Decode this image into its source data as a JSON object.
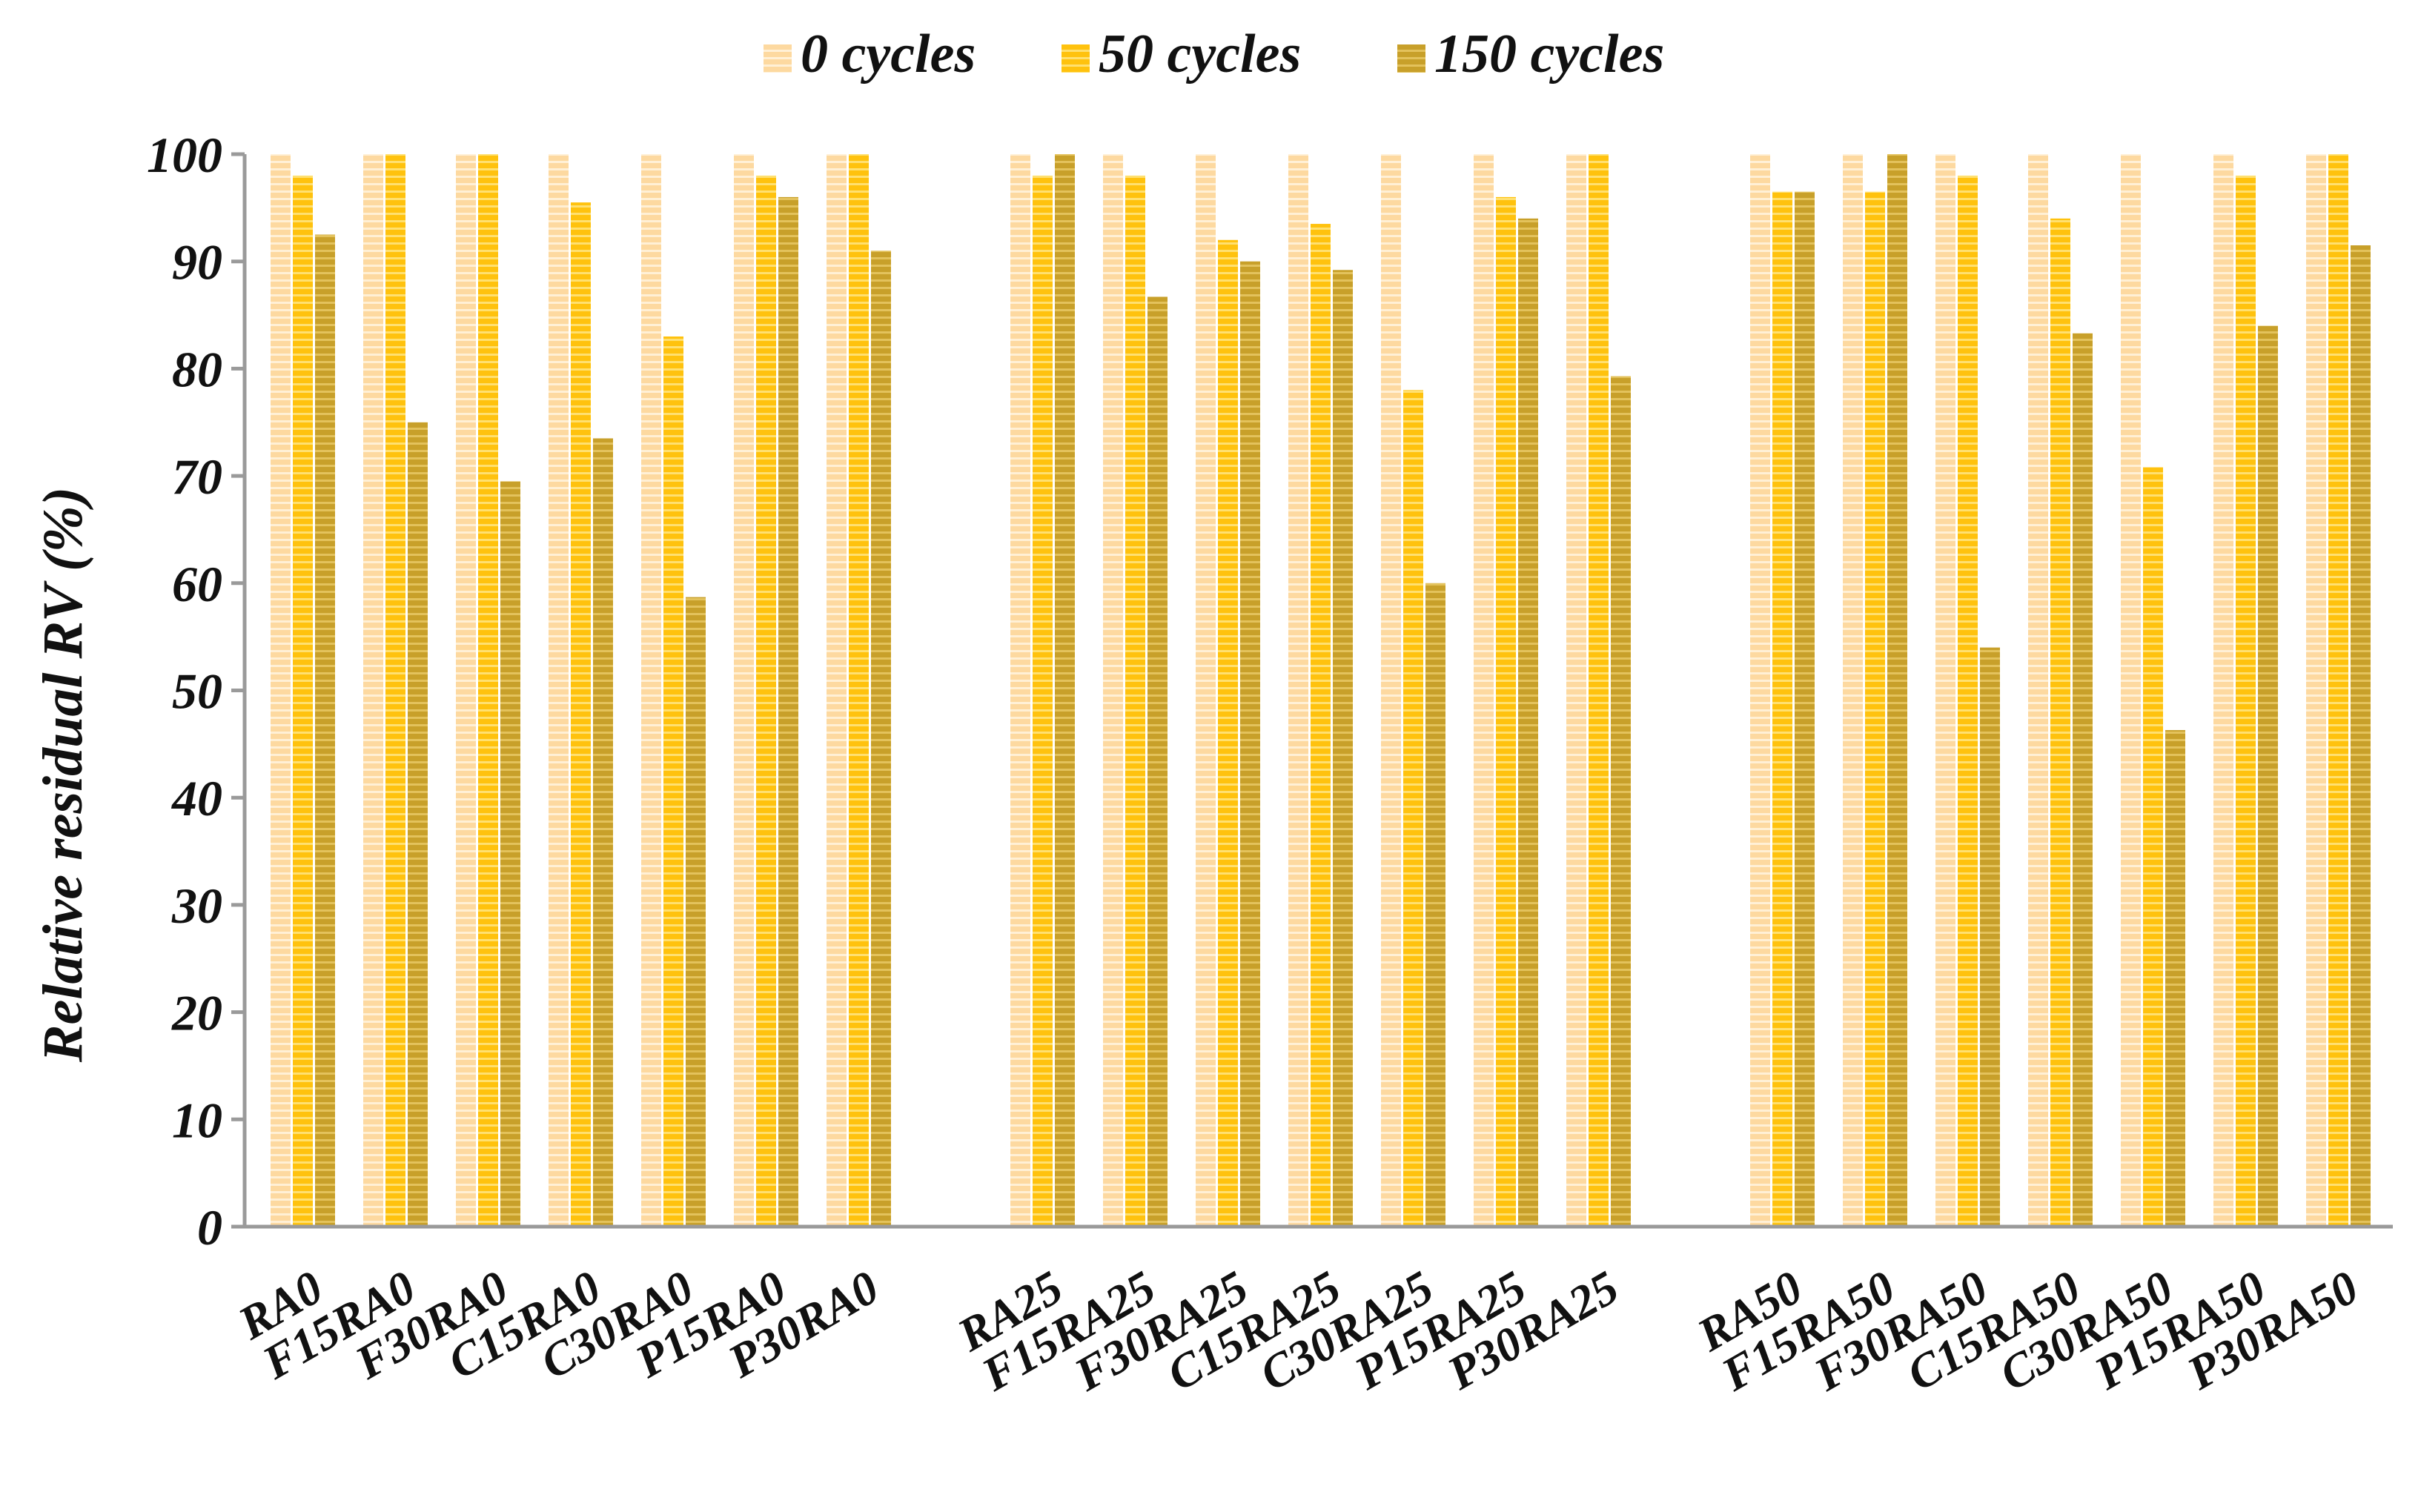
{
  "chart_data": {
    "type": "bar",
    "title": "",
    "xlabel": "",
    "ylabel": "Relative residual RV (%)",
    "ylim": [
      0,
      100
    ],
    "yticks": [
      "0",
      "10",
      "20",
      "30",
      "40",
      "50",
      "60",
      "70",
      "80",
      "90",
      "100"
    ],
    "grid": false,
    "legend_position": "top-center",
    "groups": [
      [
        "RA0",
        "F15RA0",
        "F30RA0",
        "C15RA0",
        "C30RA0",
        "P15RA0",
        "P30RA0"
      ],
      [
        "RA25",
        "F15RA25",
        "F30RA25",
        "C15RA25",
        "C30RA25",
        "P15RA25",
        "P30RA25"
      ],
      [
        "RA50",
        "F15RA50",
        "F30RA50",
        "C15RA50",
        "C30RA50",
        "P15RA50",
        "P30RA50"
      ]
    ],
    "series": [
      {
        "name": "0 cycles",
        "color": "#FDD9A0",
        "stripe": "#FFF0D6",
        "values": [
          100,
          100,
          100,
          100,
          100,
          100,
          100,
          100,
          100,
          100,
          100,
          100,
          100,
          100,
          100,
          100,
          100,
          100,
          100,
          100,
          100
        ]
      },
      {
        "name": "50 cycles",
        "color": "#FFC20E",
        "stripe": "#FFE070",
        "values": [
          98,
          100,
          100,
          95.5,
          83,
          98,
          100,
          98,
          98,
          92,
          93.5,
          78,
          96,
          100,
          96.5,
          96.5,
          98,
          94,
          70.8,
          98,
          100
        ]
      },
      {
        "name": "150 cycles",
        "color": "#C8A02A",
        "stripe": "#E3C25C",
        "values": [
          92.5,
          75,
          69.5,
          73.5,
          58.7,
          96,
          91,
          100,
          86.7,
          90,
          89.2,
          60,
          94,
          79.3,
          96.5,
          100,
          54,
          83.3,
          46.3,
          84,
          91.5
        ]
      }
    ]
  }
}
